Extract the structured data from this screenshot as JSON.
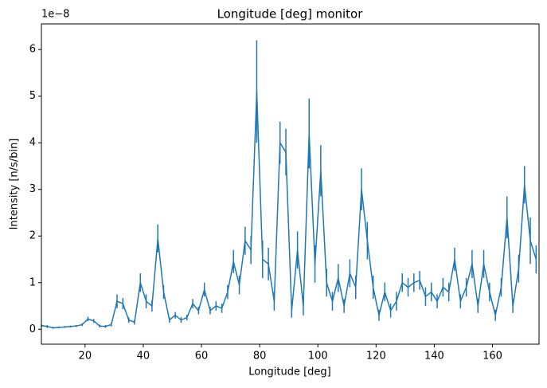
{
  "chart_data": {
    "type": "line",
    "title": "Longitude [deg] monitor",
    "xlabel": "Longitude [deg]",
    "ylabel": "Intensity [n/s/bin]",
    "y_offset_label": "1e−8",
    "x": [
      5,
      7,
      9,
      11,
      13,
      15,
      17,
      19,
      21,
      23,
      25,
      27,
      29,
      31,
      33,
      35,
      37,
      39,
      41,
      43,
      45,
      47,
      49,
      51,
      53,
      55,
      57,
      59,
      61,
      63,
      65,
      67,
      69,
      71,
      73,
      75,
      77,
      79,
      81,
      83,
      85,
      87,
      89,
      91,
      93,
      95,
      97,
      99,
      101,
      103,
      105,
      107,
      109,
      111,
      113,
      115,
      117,
      119,
      121,
      123,
      125,
      127,
      129,
      131,
      133,
      135,
      137,
      139,
      141,
      143,
      145,
      147,
      149,
      151,
      153,
      155,
      157,
      159,
      161,
      163,
      165,
      167,
      169,
      171,
      173,
      175
    ],
    "series": [
      {
        "color": "#1f77b4",
        "values": [
          0.08,
          0.06,
          0.03,
          0.04,
          0.05,
          0.06,
          0.07,
          0.1,
          0.22,
          0.18,
          0.07,
          0.06,
          0.1,
          0.6,
          0.55,
          0.2,
          0.15,
          1.0,
          0.6,
          0.5,
          1.95,
          0.8,
          0.2,
          0.3,
          0.2,
          0.25,
          0.55,
          0.4,
          0.85,
          0.4,
          0.5,
          0.45,
          0.8,
          1.45,
          0.95,
          1.9,
          1.7,
          5.1,
          1.5,
          1.4,
          0.6,
          4.0,
          3.8,
          0.4,
          1.7,
          0.5,
          4.2,
          1.4,
          3.4,
          1.0,
          0.6,
          1.1,
          0.5,
          1.2,
          0.9,
          3.0,
          1.9,
          0.9,
          0.3,
          0.8,
          0.4,
          0.6,
          1.0,
          0.9,
          1.0,
          1.05,
          0.7,
          0.8,
          0.6,
          0.9,
          0.8,
          1.5,
          0.6,
          0.9,
          1.4,
          0.5,
          1.4,
          0.8,
          0.3,
          0.9,
          2.4,
          0.5,
          1.3,
          3.1,
          1.9,
          1.5
        ],
        "errors": [
          0.03,
          0.03,
          0.02,
          0.02,
          0.02,
          0.02,
          0.02,
          0.03,
          0.05,
          0.04,
          0.03,
          0.03,
          0.04,
          0.15,
          0.12,
          0.06,
          0.05,
          0.2,
          0.15,
          0.12,
          0.3,
          0.15,
          0.06,
          0.07,
          0.06,
          0.06,
          0.1,
          0.08,
          0.15,
          0.08,
          0.1,
          0.1,
          0.15,
          0.25,
          0.2,
          0.3,
          0.3,
          1.1,
          0.4,
          0.35,
          0.2,
          0.45,
          0.5,
          0.15,
          0.4,
          0.2,
          0.75,
          0.4,
          0.55,
          0.3,
          0.2,
          0.3,
          0.15,
          0.3,
          0.25,
          0.45,
          0.4,
          0.25,
          0.12,
          0.2,
          0.15,
          0.2,
          0.2,
          0.2,
          0.2,
          0.2,
          0.2,
          0.2,
          0.15,
          0.2,
          0.2,
          0.25,
          0.15,
          0.2,
          0.3,
          0.15,
          0.3,
          0.2,
          0.12,
          0.2,
          0.45,
          0.15,
          0.3,
          0.4,
          0.5,
          0.3
        ]
      }
    ],
    "xlim": [
      5,
      176
    ],
    "ylim": [
      -0.32,
      6.55
    ],
    "xticks": [
      20,
      40,
      60,
      80,
      100,
      120,
      140,
      160
    ],
    "yticks": [
      0,
      1,
      2,
      3,
      4,
      5,
      6
    ]
  }
}
